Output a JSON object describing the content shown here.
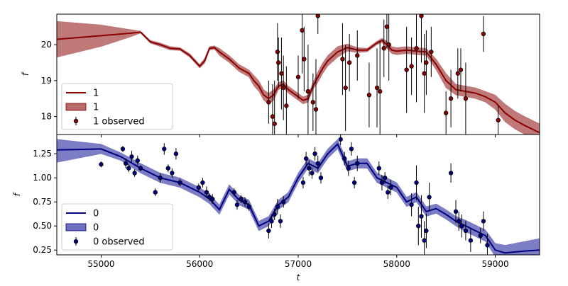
{
  "chart_data": [
    {
      "type": "line",
      "title": "",
      "xlabel": "",
      "ylabel": "f",
      "xlim": [
        54550,
        59450
      ],
      "ylim": [
        17.5,
        20.85
      ],
      "x_ticks": [
        55000,
        56000,
        57000,
        58000,
        59000
      ],
      "x_tick_labels_shown": false,
      "y_ticks": [
        18,
        19,
        20
      ],
      "y_tick_labels": [
        "18",
        "19",
        "20"
      ],
      "legend_position": "lower-left",
      "colors": {
        "line": "#8b0000",
        "band": "#b86a6a",
        "marker": "#8b0000"
      },
      "series": [
        {
          "name": "1",
          "kind": "model-line",
          "x": [
            54550,
            55000,
            55300,
            55400,
            55500,
            55600,
            55700,
            55800,
            55900,
            56000,
            56050,
            56100,
            56150,
            56200,
            56300,
            56400,
            56500,
            56550,
            56600,
            56650,
            56700,
            56750,
            56800,
            56850,
            56900,
            57000,
            57050,
            57100,
            57150,
            57200,
            57250,
            57300,
            57400,
            57500,
            57600,
            57700,
            57800,
            57850,
            57900,
            57950,
            58000,
            58100,
            58200,
            58300,
            58400,
            58500,
            58600,
            58700,
            58800,
            58900,
            59000,
            59100,
            59200,
            59300,
            59450
          ],
          "y": [
            20.15,
            20.25,
            20.32,
            20.35,
            20.08,
            20.0,
            19.9,
            19.88,
            19.7,
            19.4,
            19.55,
            19.9,
            19.92,
            19.8,
            19.6,
            19.35,
            19.2,
            19.0,
            18.85,
            18.6,
            18.5,
            18.6,
            18.85,
            18.9,
            18.75,
            18.55,
            18.45,
            18.5,
            18.85,
            19.1,
            19.35,
            19.55,
            19.8,
            19.92,
            19.85,
            19.85,
            20.05,
            20.12,
            20.0,
            19.85,
            19.82,
            19.85,
            19.82,
            19.8,
            19.45,
            19.0,
            18.75,
            18.7,
            18.65,
            18.55,
            18.4,
            18.1,
            17.9,
            17.75,
            17.55
          ]
        },
        {
          "name": "1",
          "kind": "uncertainty-band",
          "x": [
            54550,
            55000,
            55300,
            55400,
            55500,
            55600,
            55700,
            55800,
            55900,
            56000,
            56050,
            56100,
            56150,
            56200,
            56300,
            56400,
            56500,
            56550,
            56600,
            56650,
            56700,
            56750,
            56800,
            56850,
            56900,
            57000,
            57050,
            57100,
            57150,
            57200,
            57250,
            57300,
            57400,
            57500,
            57600,
            57700,
            57800,
            57850,
            57900,
            57950,
            58000,
            58100,
            58200,
            58300,
            58400,
            58500,
            58600,
            58700,
            58800,
            58900,
            59000,
            59100,
            59200,
            59300,
            59450
          ],
          "upper": [
            20.65,
            20.55,
            20.42,
            20.38,
            20.12,
            20.05,
            19.95,
            19.92,
            19.75,
            19.45,
            19.62,
            19.95,
            19.97,
            19.9,
            19.7,
            19.45,
            19.3,
            19.15,
            19.0,
            18.75,
            18.65,
            18.75,
            18.95,
            19.0,
            18.85,
            18.65,
            18.55,
            18.6,
            18.95,
            19.25,
            19.5,
            19.7,
            19.95,
            20.02,
            19.92,
            19.9,
            20.1,
            20.18,
            20.1,
            19.95,
            19.92,
            19.95,
            19.92,
            19.9,
            19.6,
            19.2,
            18.9,
            18.85,
            18.8,
            18.7,
            18.6,
            18.35,
            18.15,
            18.0,
            17.8
          ],
          "lower": [
            19.65,
            19.95,
            20.22,
            20.32,
            20.04,
            19.95,
            19.85,
            19.84,
            19.65,
            19.35,
            19.48,
            19.85,
            19.87,
            19.7,
            19.5,
            19.25,
            19.1,
            18.85,
            18.7,
            18.45,
            18.35,
            18.45,
            18.75,
            18.8,
            18.65,
            18.45,
            18.35,
            18.4,
            18.75,
            18.95,
            19.2,
            19.4,
            19.65,
            19.82,
            19.78,
            19.8,
            20.0,
            20.06,
            19.9,
            19.75,
            19.72,
            19.75,
            19.72,
            19.7,
            19.3,
            18.8,
            18.6,
            18.55,
            18.5,
            18.4,
            18.2,
            17.85,
            17.65,
            17.5,
            17.3
          ]
        },
        {
          "name": "1 observed",
          "kind": "errorbar-points",
          "x": [
            56700,
            56740,
            56760,
            56790,
            56800,
            56830,
            56850,
            56880,
            57000,
            57040,
            57060,
            57100,
            57150,
            57180,
            57200,
            57450,
            57480,
            57520,
            57600,
            57720,
            57800,
            57830,
            57870,
            57900,
            57920,
            58100,
            58150,
            58200,
            58250,
            58280,
            58300,
            58350,
            58500,
            58550,
            58620,
            58650,
            58700,
            58880,
            59030
          ],
          "y": [
            18.4,
            18.0,
            17.8,
            19.8,
            19.5,
            19.2,
            18.8,
            18.3,
            19.1,
            20.4,
            19.6,
            18.7,
            18.4,
            18.2,
            20.8,
            19.6,
            18.8,
            19.5,
            19.7,
            18.6,
            18.8,
            18.7,
            19.9,
            20.5,
            20.0,
            19.3,
            19.4,
            19.9,
            20.8,
            19.2,
            19.5,
            19.8,
            18.1,
            18.5,
            19.2,
            19.3,
            18.5,
            20.3,
            17.9
          ],
          "err": [
            0.6,
            0.9,
            1.2,
            0.8,
            0.7,
            1.0,
            0.9,
            1.1,
            0.6,
            1.2,
            0.9,
            1.3,
            0.8,
            1.4,
            0.5,
            1.0,
            1.2,
            0.8,
            0.7,
            0.9,
            1.1,
            1.4,
            0.8,
            0.6,
            1.0,
            1.2,
            0.8,
            1.5,
            1.3,
            1.1,
            0.9,
            0.7,
            0.6,
            0.8,
            0.7,
            0.6,
            1.0,
            0.5,
            0.4
          ]
        }
      ]
    },
    {
      "type": "line",
      "title": "",
      "xlabel": "t",
      "ylabel": "f",
      "xlim": [
        54550,
        59450
      ],
      "ylim": [
        0.2,
        1.45
      ],
      "x_ticks": [
        55000,
        56000,
        57000,
        58000,
        59000
      ],
      "x_tick_labels": [
        "55000",
        "56000",
        "57000",
        "58000",
        "59000"
      ],
      "y_ticks": [
        0.25,
        0.5,
        0.75,
        1.0,
        1.25
      ],
      "y_tick_labels": [
        "0.25",
        "0.50",
        "0.75",
        "1.00",
        "1.25"
      ],
      "legend_position": "lower-left",
      "colors": {
        "line": "#000080",
        "band": "#6f6fbf",
        "marker": "#000080"
      },
      "series": [
        {
          "name": "0",
          "kind": "model-line",
          "x": [
            54550,
            55000,
            55200,
            55400,
            55600,
            55800,
            56000,
            56100,
            56200,
            56300,
            56400,
            56500,
            56600,
            56700,
            56800,
            56900,
            57000,
            57100,
            57200,
            57300,
            57400,
            57500,
            57600,
            57700,
            57800,
            57900,
            58000,
            58100,
            58200,
            58300,
            58400,
            58500,
            58600,
            58700,
            58800,
            58900,
            59000,
            59100,
            59200,
            59300,
            59450
          ],
          "y": [
            1.29,
            1.3,
            1.22,
            1.1,
            1.0,
            0.95,
            0.85,
            0.78,
            0.67,
            0.88,
            0.77,
            0.72,
            0.5,
            0.55,
            0.72,
            0.8,
            1.0,
            1.15,
            1.1,
            1.25,
            1.35,
            1.12,
            1.15,
            1.15,
            1.0,
            0.95,
            0.9,
            0.75,
            0.8,
            0.65,
            0.68,
            0.62,
            0.55,
            0.5,
            0.45,
            0.4,
            0.25,
            0.22,
            0.23,
            0.24,
            0.25
          ]
        },
        {
          "name": "0",
          "kind": "uncertainty-band",
          "x": [
            54550,
            55000,
            55200,
            55400,
            55600,
            55800,
            56000,
            56100,
            56200,
            56300,
            56400,
            56500,
            56600,
            56700,
            56800,
            56900,
            57000,
            57100,
            57200,
            57300,
            57400,
            57500,
            57600,
            57700,
            57800,
            57900,
            58000,
            58100,
            58200,
            58300,
            58400,
            58500,
            58600,
            58700,
            58800,
            58900,
            59000,
            59100,
            59200,
            59300,
            59450
          ],
          "upper": [
            1.4,
            1.35,
            1.26,
            1.15,
            1.05,
            1.0,
            0.9,
            0.83,
            0.72,
            0.93,
            0.82,
            0.77,
            0.55,
            0.6,
            0.77,
            0.85,
            1.05,
            1.2,
            1.15,
            1.3,
            1.4,
            1.17,
            1.2,
            1.2,
            1.05,
            1.0,
            0.95,
            0.8,
            0.85,
            0.7,
            0.73,
            0.67,
            0.6,
            0.56,
            0.51,
            0.46,
            0.32,
            0.3,
            0.32,
            0.34,
            0.37
          ],
          "lower": [
            1.16,
            1.25,
            1.18,
            1.05,
            0.95,
            0.9,
            0.8,
            0.73,
            0.62,
            0.83,
            0.72,
            0.67,
            0.45,
            0.5,
            0.67,
            0.75,
            0.95,
            1.1,
            1.05,
            1.2,
            1.3,
            1.07,
            1.1,
            1.1,
            0.95,
            0.9,
            0.85,
            0.7,
            0.75,
            0.6,
            0.63,
            0.57,
            0.5,
            0.44,
            0.39,
            0.34,
            0.18,
            0.14,
            0.14,
            0.14,
            0.13
          ]
        },
        {
          "name": "0 observed",
          "kind": "errorbar-points",
          "x": [
            55000,
            55220,
            55250,
            55280,
            55310,
            55340,
            55370,
            55400,
            55550,
            55600,
            55640,
            55680,
            55720,
            55760,
            55800,
            55990,
            56030,
            56070,
            56100,
            56130,
            56350,
            56380,
            56420,
            56460,
            56500,
            56700,
            56730,
            56760,
            56790,
            56820,
            56850,
            57050,
            57080,
            57110,
            57140,
            57170,
            57200,
            57230,
            57430,
            57470,
            57510,
            57540,
            57570,
            57600,
            57820,
            57850,
            57880,
            57910,
            57940,
            58150,
            58200,
            58220,
            58250,
            58280,
            58300,
            58330,
            58550,
            58600,
            58630,
            58660,
            58700,
            58750,
            58850,
            58880,
            58920
          ],
          "y": [
            1.14,
            1.3,
            1.15,
            1.1,
            1.22,
            1.05,
            1.18,
            1.1,
            0.85,
            1.0,
            1.3,
            1.1,
            1.05,
            1.25,
            0.95,
            0.9,
            0.95,
            0.85,
            0.8,
            0.78,
            0.85,
            0.72,
            0.78,
            0.75,
            0.7,
            0.45,
            0.55,
            0.62,
            0.7,
            0.55,
            0.75,
            0.95,
            1.2,
            1.1,
            1.05,
            1.25,
            1.15,
            1.0,
            1.4,
            1.2,
            1.1,
            1.3,
            0.95,
            1.15,
            1.1,
            0.95,
            1.0,
            0.85,
            0.9,
            0.72,
            0.95,
            0.5,
            0.6,
            0.35,
            0.45,
            0.8,
            1.05,
            0.65,
            0.55,
            0.5,
            0.45,
            0.35,
            0.4,
            0.55,
            0.3
          ],
          "err": [
            0.03,
            0.03,
            0.05,
            0.04,
            0.06,
            0.04,
            0.05,
            0.03,
            0.04,
            0.05,
            0.06,
            0.04,
            0.05,
            0.06,
            0.04,
            0.04,
            0.05,
            0.06,
            0.04,
            0.05,
            0.04,
            0.05,
            0.04,
            0.05,
            0.04,
            0.08,
            0.07,
            0.06,
            0.08,
            0.07,
            0.06,
            0.06,
            0.07,
            0.08,
            0.06,
            0.07,
            0.08,
            0.06,
            0.06,
            0.07,
            0.08,
            0.07,
            0.06,
            0.08,
            0.07,
            0.08,
            0.06,
            0.07,
            0.08,
            0.12,
            0.18,
            0.2,
            0.22,
            0.2,
            0.18,
            0.15,
            0.1,
            0.12,
            0.1,
            0.12,
            0.1,
            0.12,
            0.08,
            0.1,
            0.12
          ]
        }
      ]
    }
  ]
}
